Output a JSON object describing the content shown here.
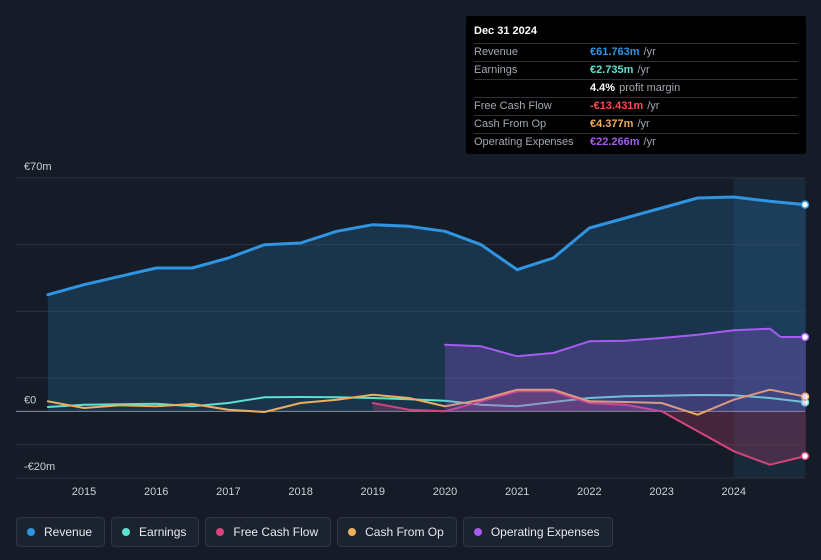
{
  "tooltip": {
    "date": "Dec 31 2024",
    "rows": [
      {
        "label": "Revenue",
        "value": "€61.763m",
        "unit": "/yr",
        "color": "#2f95e2"
      },
      {
        "label": "Earnings",
        "value": "€2.735m",
        "unit": "/yr",
        "color": "#5fe0cf"
      },
      {
        "label": "",
        "value": "4.4%",
        "unit": "profit margin",
        "color": "#ffffff"
      },
      {
        "label": "Free Cash Flow",
        "value": "-€13.431m",
        "unit": "/yr",
        "color": "#ff4a55"
      },
      {
        "label": "Cash From Op",
        "value": "€4.377m",
        "unit": "/yr",
        "color": "#f0ad5b"
      },
      {
        "label": "Operating Expenses",
        "value": "€22.266m",
        "unit": "/yr",
        "color": "#a45cf0"
      }
    ]
  },
  "legend": [
    {
      "label": "Revenue",
      "color": "#2f95e2"
    },
    {
      "label": "Earnings",
      "color": "#5fe0cf"
    },
    {
      "label": "Free Cash Flow",
      "color": "#d3457c"
    },
    {
      "label": "Cash From Op",
      "color": "#f0ad5b"
    },
    {
      "label": "Operating Expenses",
      "color": "#a45cf0"
    }
  ],
  "chart_data": {
    "type": "area",
    "title": "",
    "xlabel": "",
    "ylabel": "",
    "ylim": [
      -20,
      70
    ],
    "xlim": [
      2014.0,
      2025.0
    ],
    "y_tick_labels": [
      {
        "value": 70,
        "label": "€70m"
      },
      {
        "value": 0,
        "label": "€0"
      },
      {
        "value": -20,
        "label": "-€20m"
      }
    ],
    "x_ticks": [
      2015,
      2016,
      2017,
      2018,
      2019,
      2020,
      2021,
      2022,
      2023,
      2024
    ],
    "forecast_start": 2024.0,
    "series": [
      {
        "name": "Revenue",
        "color": "#2f95e2",
        "fill": true,
        "x": [
          2014.5,
          2015.0,
          2015.5,
          2016.0,
          2016.5,
          2017.0,
          2017.5,
          2018.0,
          2018.5,
          2019.0,
          2019.5,
          2020.0,
          2020.5,
          2021.0,
          2021.5,
          2022.0,
          2022.5,
          2023.0,
          2023.5,
          2024.0,
          2024.5,
          2025.0
        ],
        "values": [
          35,
          38,
          40.5,
          43,
          43,
          46,
          50,
          50.5,
          54,
          56,
          55.5,
          54,
          50,
          42.5,
          46,
          55,
          58,
          61,
          64,
          64.3,
          63,
          62
        ]
      },
      {
        "name": "Earnings",
        "color": "#5fe0cf",
        "fill": false,
        "x": [
          2014.5,
          2015.0,
          2015.5,
          2016.0,
          2016.5,
          2017.0,
          2017.5,
          2018.0,
          2018.5,
          2019.0,
          2019.5,
          2020.0,
          2020.5,
          2021.0,
          2021.5,
          2022.0,
          2022.5,
          2023.0,
          2023.5,
          2024.0,
          2024.5,
          2025.0
        ],
        "values": [
          1.3,
          2.0,
          2.1,
          2.3,
          1.5,
          2.5,
          4.2,
          4.3,
          4.2,
          4.0,
          3.6,
          3.2,
          2.0,
          1.5,
          2.8,
          4.0,
          4.5,
          4.7,
          4.9,
          4.8,
          4.0,
          2.7
        ]
      },
      {
        "name": "Free Cash Flow",
        "color": "#d3457c",
        "fill": true,
        "x": [
          2019.0,
          2019.5,
          2020.0,
          2020.5,
          2021.0,
          2021.5,
          2022.0,
          2022.5,
          2023.0,
          2023.5,
          2024.0,
          2024.5,
          2025.0
        ],
        "values": [
          2.5,
          0.5,
          0.0,
          3.0,
          6.0,
          6.0,
          2.5,
          2.0,
          0.0,
          -6.0,
          -12.0,
          -16.0,
          -13.4
        ]
      },
      {
        "name": "Cash From Op",
        "color": "#f0ad5b",
        "fill": false,
        "x": [
          2014.5,
          2015.0,
          2015.5,
          2016.0,
          2016.5,
          2017.0,
          2017.5,
          2018.0,
          2018.5,
          2019.0,
          2019.5,
          2020.0,
          2020.5,
          2021.0,
          2021.5,
          2022.0,
          2022.5,
          2023.0,
          2023.5,
          2024.0,
          2024.5,
          2025.0
        ],
        "values": [
          3.0,
          1.0,
          1.8,
          1.5,
          2.2,
          0.5,
          -0.2,
          2.5,
          3.5,
          5.0,
          4.0,
          1.5,
          3.5,
          6.5,
          6.5,
          3.0,
          2.8,
          2.5,
          -1.0,
          3.5,
          6.5,
          4.4
        ]
      },
      {
        "name": "Operating Expenses",
        "color": "#a45cf0",
        "fill": true,
        "x": [
          2020.0,
          2020.5,
          2021.0,
          2021.5,
          2022.0,
          2022.5,
          2023.0,
          2023.5,
          2024.0,
          2024.5,
          2024.65,
          2025.0
        ],
        "values": [
          20.0,
          19.5,
          16.5,
          17.5,
          21.0,
          21.2,
          22.0,
          23.0,
          24.3,
          24.8,
          22.3,
          22.3
        ]
      }
    ]
  }
}
